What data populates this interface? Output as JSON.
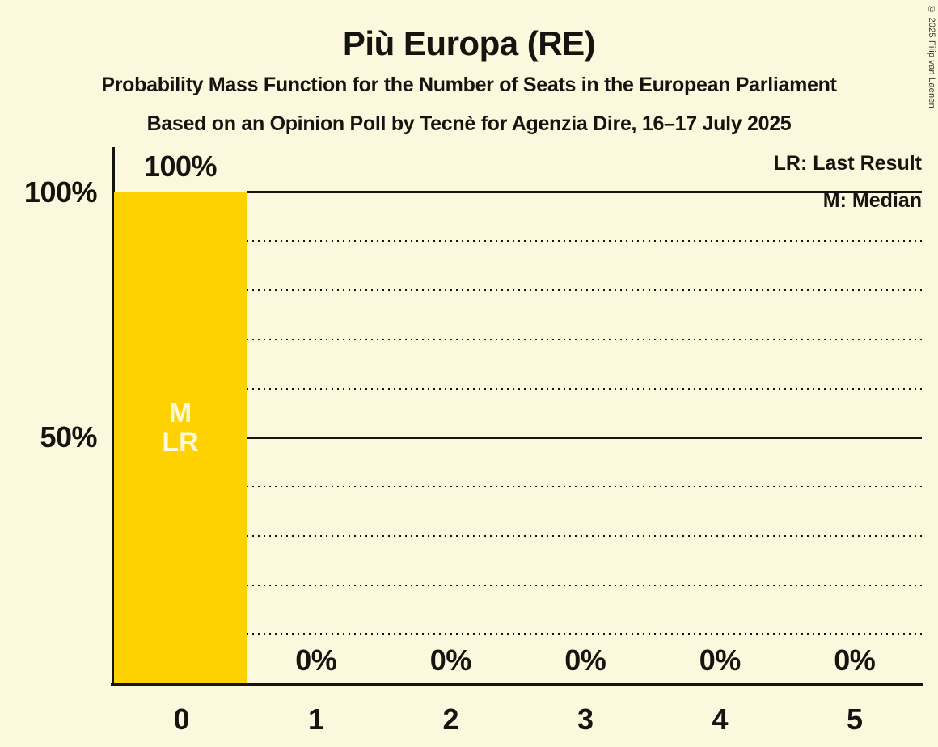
{
  "title": "Più Europa (RE)",
  "subtitle1": "Probability Mass Function for the Number of Seats in the European Parliament",
  "subtitle2": "Based on an Opinion Poll by Tecnè for Agenzia Dire, 16–17 July 2025",
  "copyright": "© 2025 Filip van Laenen",
  "legend": {
    "lr": "LR: Last Result",
    "m": "M: Median"
  },
  "y_axis": {
    "labels": [
      "100%",
      "50%"
    ]
  },
  "colors": {
    "background": "#FCF8DE",
    "bar": "#FDD200",
    "text": "#15140F",
    "bar_label": "#FCF8DE"
  },
  "chart_data": {
    "type": "bar",
    "title": "Più Europa (RE)",
    "categories": [
      "0",
      "1",
      "2",
      "3",
      "4",
      "5"
    ],
    "values": [
      100,
      0,
      0,
      0,
      0,
      0
    ],
    "value_labels": [
      "100%",
      "0%",
      "0%",
      "0%",
      "0%",
      "0%"
    ],
    "ylim": [
      0,
      100
    ],
    "y_tick_labels": [
      "100%",
      "50%"
    ],
    "y_gridlines_pct": [
      10,
      20,
      30,
      40,
      50,
      60,
      70,
      80,
      90,
      100
    ],
    "grid": "dotted, solid at 50% and 100%",
    "legend_position": "top-right",
    "median_seats": "0",
    "last_result_seats": "0",
    "annotations": {
      "median": "M",
      "last_result": "LR"
    }
  }
}
